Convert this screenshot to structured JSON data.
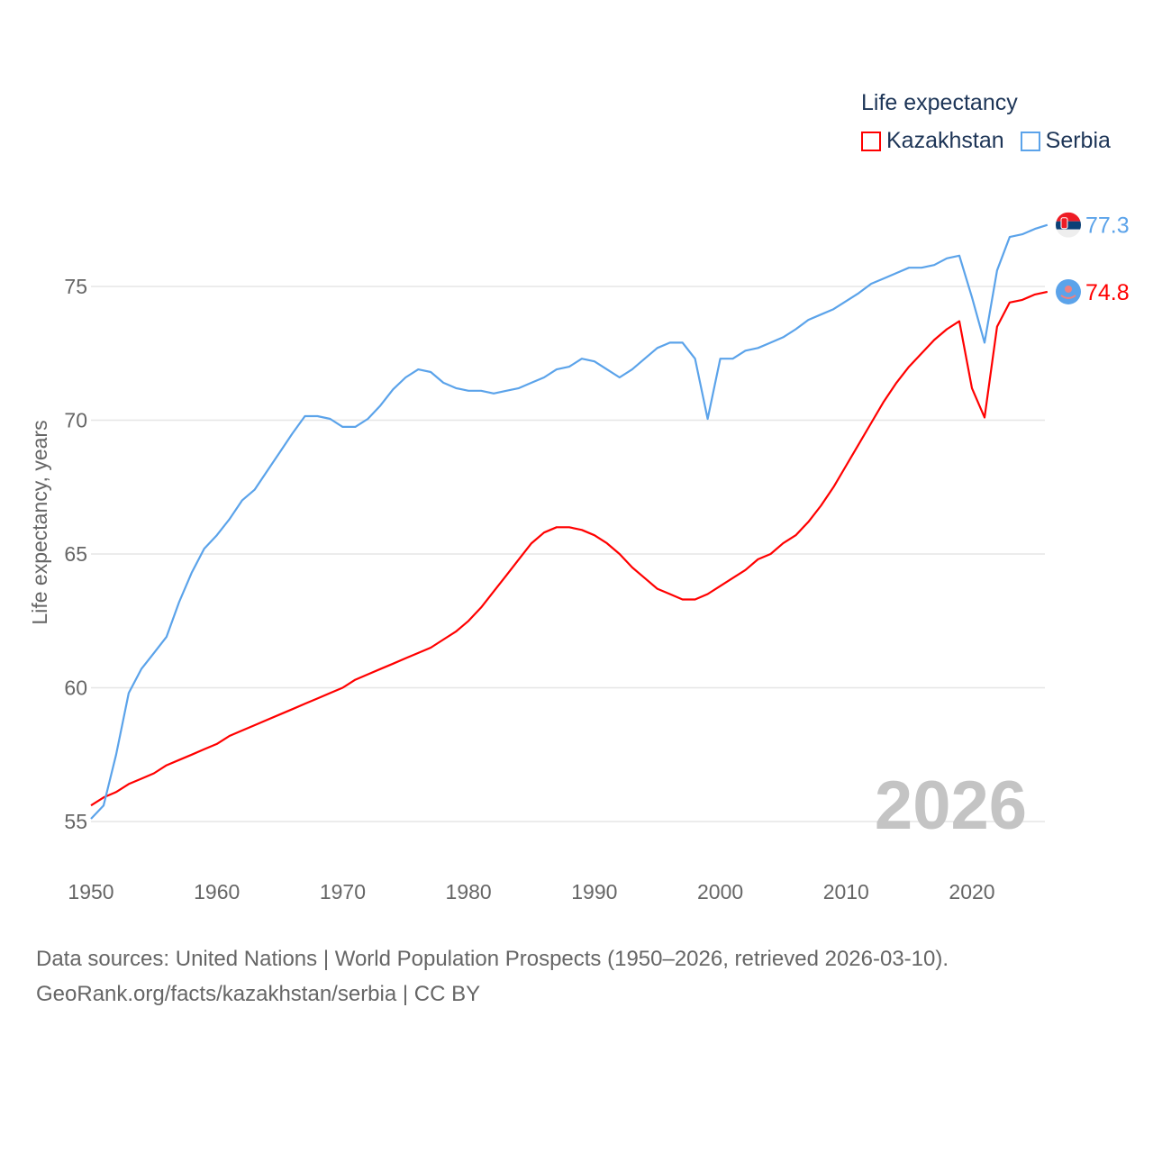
{
  "chart_data": {
    "type": "line",
    "title": "Life expectancy",
    "xlabel": "",
    "ylabel": "Life expectancy, years",
    "xlim": [
      1950,
      2026
    ],
    "ylim": [
      53.5,
      78
    ],
    "yticks": [
      55,
      60,
      65,
      70,
      75
    ],
    "xticks": [
      1950,
      1960,
      1970,
      1980,
      1990,
      2000,
      2010,
      2020
    ],
    "grid": true,
    "legend_position": "top-right",
    "year_label": "2026",
    "x": [
      1950,
      1951,
      1952,
      1953,
      1954,
      1955,
      1956,
      1957,
      1958,
      1959,
      1960,
      1961,
      1962,
      1963,
      1964,
      1965,
      1966,
      1967,
      1968,
      1969,
      1970,
      1971,
      1972,
      1973,
      1974,
      1975,
      1976,
      1977,
      1978,
      1979,
      1980,
      1981,
      1982,
      1983,
      1984,
      1985,
      1986,
      1987,
      1988,
      1989,
      1990,
      1991,
      1992,
      1993,
      1994,
      1995,
      1996,
      1997,
      1998,
      1999,
      2000,
      2001,
      2002,
      2003,
      2004,
      2005,
      2006,
      2007,
      2008,
      2009,
      2010,
      2011,
      2012,
      2013,
      2014,
      2015,
      2016,
      2017,
      2018,
      2019,
      2020,
      2021,
      2022,
      2023,
      2024,
      2025,
      2026
    ],
    "series": [
      {
        "name": "Kazakhstan",
        "color": "#ff0000",
        "end_label": "74.8",
        "values": [
          55.6,
          55.9,
          56.1,
          56.4,
          56.6,
          56.8,
          57.1,
          57.3,
          57.5,
          57.7,
          57.9,
          58.2,
          58.4,
          58.6,
          58.8,
          59.0,
          59.2,
          59.4,
          59.6,
          59.8,
          60.0,
          60.3,
          60.5,
          60.7,
          60.9,
          61.1,
          61.3,
          61.5,
          61.8,
          62.1,
          62.5,
          63.0,
          63.6,
          64.2,
          64.8,
          65.4,
          65.8,
          66.0,
          66.0,
          65.9,
          65.7,
          65.4,
          65.0,
          64.5,
          64.1,
          63.7,
          63.5,
          63.3,
          63.3,
          63.5,
          63.8,
          64.1,
          64.4,
          64.8,
          65.0,
          65.4,
          65.7,
          66.2,
          66.8,
          67.5,
          68.3,
          69.1,
          69.9,
          70.7,
          71.4,
          72.0,
          72.5,
          73.0,
          73.4,
          73.7,
          71.2,
          70.1,
          73.5,
          74.4,
          74.5,
          74.7,
          74.8
        ]
      },
      {
        "name": "Serbia",
        "color": "#5ba3ea",
        "end_label": "77.3",
        "values": [
          55.1,
          55.6,
          57.5,
          59.8,
          60.7,
          61.3,
          61.9,
          63.2,
          64.3,
          65.2,
          65.7,
          66.3,
          67.0,
          67.4,
          68.1,
          68.8,
          69.5,
          70.15,
          70.15,
          70.05,
          69.75,
          69.75,
          70.05,
          70.55,
          71.15,
          71.6,
          71.9,
          71.8,
          71.4,
          71.2,
          71.1,
          71.1,
          71.0,
          71.1,
          71.2,
          71.4,
          71.6,
          71.9,
          72.0,
          72.3,
          72.2,
          71.9,
          71.6,
          71.9,
          72.3,
          72.7,
          72.9,
          72.9,
          72.3,
          70.05,
          72.3,
          72.3,
          72.6,
          72.7,
          72.9,
          73.1,
          73.4,
          73.75,
          73.95,
          74.15,
          74.45,
          74.75,
          75.1,
          75.3,
          75.5,
          75.7,
          75.7,
          75.8,
          76.05,
          76.15,
          74.6,
          72.9,
          75.6,
          76.85,
          76.95,
          77.15,
          77.3
        ]
      }
    ]
  },
  "source": {
    "line1": "Data sources: United Nations | World Population Prospects (1950–2026, retrieved 2026-03-10).",
    "line2": "GeoRank.org/facts/kazakhstan/serbia | CC BY"
  }
}
